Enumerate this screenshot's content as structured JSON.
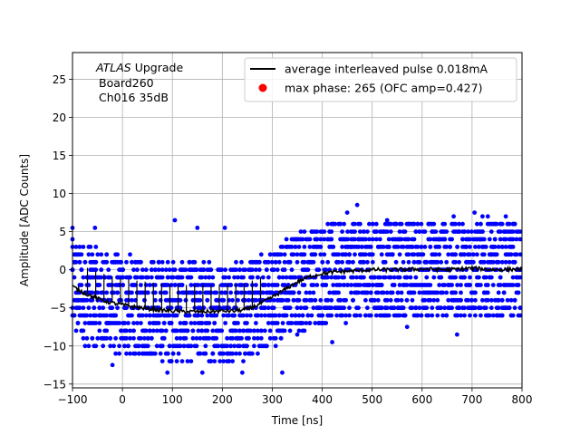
{
  "chart_data": {
    "type": "scatter",
    "title": "",
    "xlabel": "Time [ns]",
    "ylabel": "Amplitude [ADC Counts]",
    "xlim": [
      -100,
      800
    ],
    "ylim": [
      -15.5,
      28.5
    ],
    "xticks": [
      -100,
      0,
      100,
      200,
      300,
      400,
      500,
      600,
      700,
      800
    ],
    "yticks": [
      -15,
      -10,
      -5,
      0,
      5,
      10,
      15,
      20,
      25
    ],
    "grid": true,
    "legend_position": "upper-right",
    "annotation": {
      "experiment": "ATLAS",
      "experiment_suffix": " Upgrade",
      "line2": "Board260",
      "line3": "Ch016 35dB"
    },
    "series": [
      {
        "name": "average interleaved pulse 0.018mA",
        "kind": "line",
        "color": "#000000",
        "x": [
          -100,
          -75,
          -50,
          -25,
          0,
          25,
          50,
          75,
          100,
          125,
          150,
          175,
          200,
          225,
          250,
          275,
          300,
          325,
          350,
          375,
          400,
          425,
          450,
          475,
          500,
          550,
          600,
          650,
          700,
          750,
          800
        ],
        "y": [
          -2.2,
          -3.1,
          -3.8,
          -4.3,
          -4.6,
          -4.9,
          -5.1,
          -5.3,
          -5.4,
          -5.5,
          -5.5,
          -5.5,
          -5.4,
          -5.4,
          -5.2,
          -4.5,
          -3.6,
          -2.6,
          -1.6,
          -0.9,
          -0.5,
          -0.3,
          -0.2,
          -0.1,
          0.0,
          0.0,
          0.1,
          0.0,
          0.2,
          0.0,
          0.1
        ]
      },
      {
        "name": "max phase: 265 (OFC amp=0.427)",
        "kind": "marker",
        "color": "#ff0000",
        "x": [],
        "y": []
      },
      {
        "name": "samples",
        "kind": "scatter",
        "color": "#0000ff",
        "note_baseline": "per-sample ADC values spread around the average pulse",
        "outliers": [
          {
            "x": -100,
            "y": 5.5
          },
          {
            "x": -55,
            "y": 5.5
          },
          {
            "x": 105,
            "y": 6.5
          },
          {
            "x": 150,
            "y": 5.5
          },
          {
            "x": 205,
            "y": 5.5
          },
          {
            "x": 470,
            "y": 8.5
          },
          {
            "x": 450,
            "y": 7.5
          },
          {
            "x": 705,
            "y": 7.5
          },
          {
            "x": 530,
            "y": 6.5
          },
          {
            "x": 320,
            "y": -13.5
          },
          {
            "x": 160,
            "y": -13.5
          },
          {
            "x": 90,
            "y": -13.5
          },
          {
            "x": 420,
            "y": -9.5
          },
          {
            "x": 670,
            "y": -8.5
          },
          {
            "x": -20,
            "y": -12.5
          },
          {
            "x": 240,
            "y": -13.5
          },
          {
            "x": 350,
            "y": -8.5
          },
          {
            "x": 570,
            "y": -7.5
          }
        ]
      }
    ]
  }
}
